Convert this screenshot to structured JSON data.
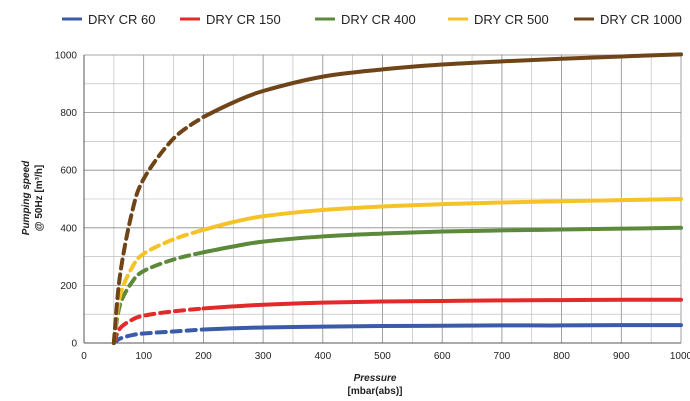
{
  "chart_data": {
    "type": "line",
    "legend_position": "top",
    "grid": true,
    "ylabel": "Pumping speed",
    "ylabel_unit": "@ 50Hz [m³/h]",
    "xlabel": "Pressure",
    "xlabel_unit": "[mbar(abs)]",
    "xlim": [
      0,
      1000
    ],
    "ylim": [
      0,
      1000
    ],
    "x_ticks": [
      0,
      100,
      200,
      300,
      400,
      500,
      600,
      700,
      800,
      900,
      1000
    ],
    "y_ticks": [
      0,
      200,
      400,
      600,
      800,
      1000
    ],
    "dashed_until_x": 200,
    "series": [
      {
        "name": "DRY CR 60",
        "color": "#3a5ba8",
        "points": [
          [
            50,
            0
          ],
          [
            60,
            15
          ],
          [
            80,
            27
          ],
          [
            100,
            33
          ],
          [
            150,
            40
          ],
          [
            200,
            47
          ],
          [
            250,
            51
          ],
          [
            300,
            54
          ],
          [
            400,
            57
          ],
          [
            500,
            59
          ],
          [
            600,
            60
          ],
          [
            700,
            61
          ],
          [
            800,
            61
          ],
          [
            900,
            62
          ],
          [
            1000,
            62
          ]
        ]
      },
      {
        "name": "DRY CR 150",
        "color": "#e22a2a",
        "points": [
          [
            50,
            0
          ],
          [
            60,
            50
          ],
          [
            80,
            80
          ],
          [
            100,
            95
          ],
          [
            150,
            110
          ],
          [
            200,
            120
          ],
          [
            250,
            127
          ],
          [
            300,
            133
          ],
          [
            400,
            140
          ],
          [
            500,
            144
          ],
          [
            600,
            146
          ],
          [
            700,
            148
          ],
          [
            800,
            149
          ],
          [
            900,
            150
          ],
          [
            1000,
            150
          ]
        ]
      },
      {
        "name": "DRY CR 400",
        "color": "#5c8a3a",
        "points": [
          [
            50,
            0
          ],
          [
            60,
            130
          ],
          [
            80,
            210
          ],
          [
            100,
            250
          ],
          [
            150,
            290
          ],
          [
            200,
            315
          ],
          [
            250,
            335
          ],
          [
            300,
            352
          ],
          [
            400,
            370
          ],
          [
            500,
            380
          ],
          [
            600,
            387
          ],
          [
            700,
            391
          ],
          [
            800,
            394
          ],
          [
            900,
            397
          ],
          [
            1000,
            400
          ]
        ]
      },
      {
        "name": "DRY CR 500",
        "color": "#f5c228",
        "points": [
          [
            50,
            0
          ],
          [
            60,
            160
          ],
          [
            80,
            260
          ],
          [
            100,
            310
          ],
          [
            150,
            360
          ],
          [
            200,
            393
          ],
          [
            250,
            420
          ],
          [
            300,
            440
          ],
          [
            400,
            462
          ],
          [
            500,
            474
          ],
          [
            600,
            482
          ],
          [
            700,
            488
          ],
          [
            800,
            492
          ],
          [
            900,
            496
          ],
          [
            1000,
            500
          ]
        ]
      },
      {
        "name": "DRY CR 1000",
        "color": "#6e4418",
        "points": [
          [
            50,
            0
          ],
          [
            60,
            230
          ],
          [
            80,
            450
          ],
          [
            100,
            570
          ],
          [
            150,
            710
          ],
          [
            200,
            785
          ],
          [
            250,
            835
          ],
          [
            300,
            875
          ],
          [
            400,
            925
          ],
          [
            500,
            950
          ],
          [
            600,
            967
          ],
          [
            700,
            978
          ],
          [
            800,
            987
          ],
          [
            900,
            995
          ],
          [
            1000,
            1002
          ]
        ]
      }
    ]
  }
}
